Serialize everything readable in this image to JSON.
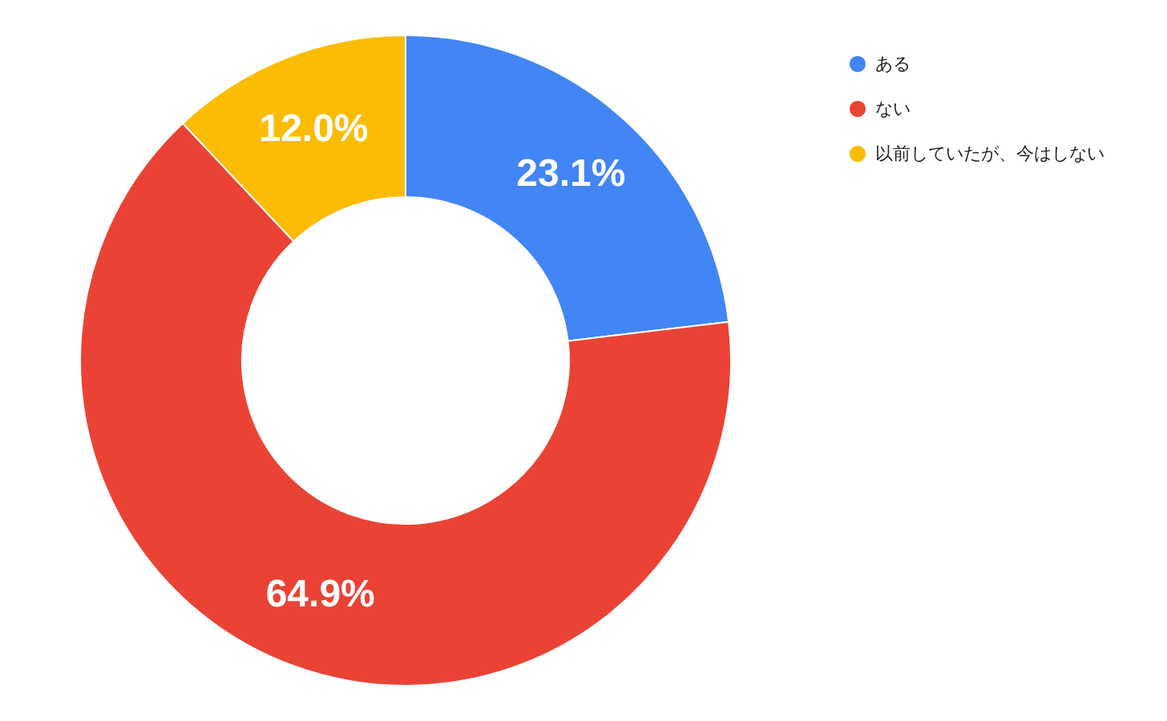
{
  "chart_data": {
    "type": "donut",
    "categories": [
      "ある",
      "ない",
      "以前していたが、今はしない"
    ],
    "values": [
      23.1,
      64.9,
      12.0
    ],
    "value_labels": [
      "23.1%",
      "64.9%",
      "12.0%"
    ],
    "colors": [
      "#4285f4",
      "#ea4335",
      "#fbbc04"
    ],
    "legend": "top right"
  }
}
